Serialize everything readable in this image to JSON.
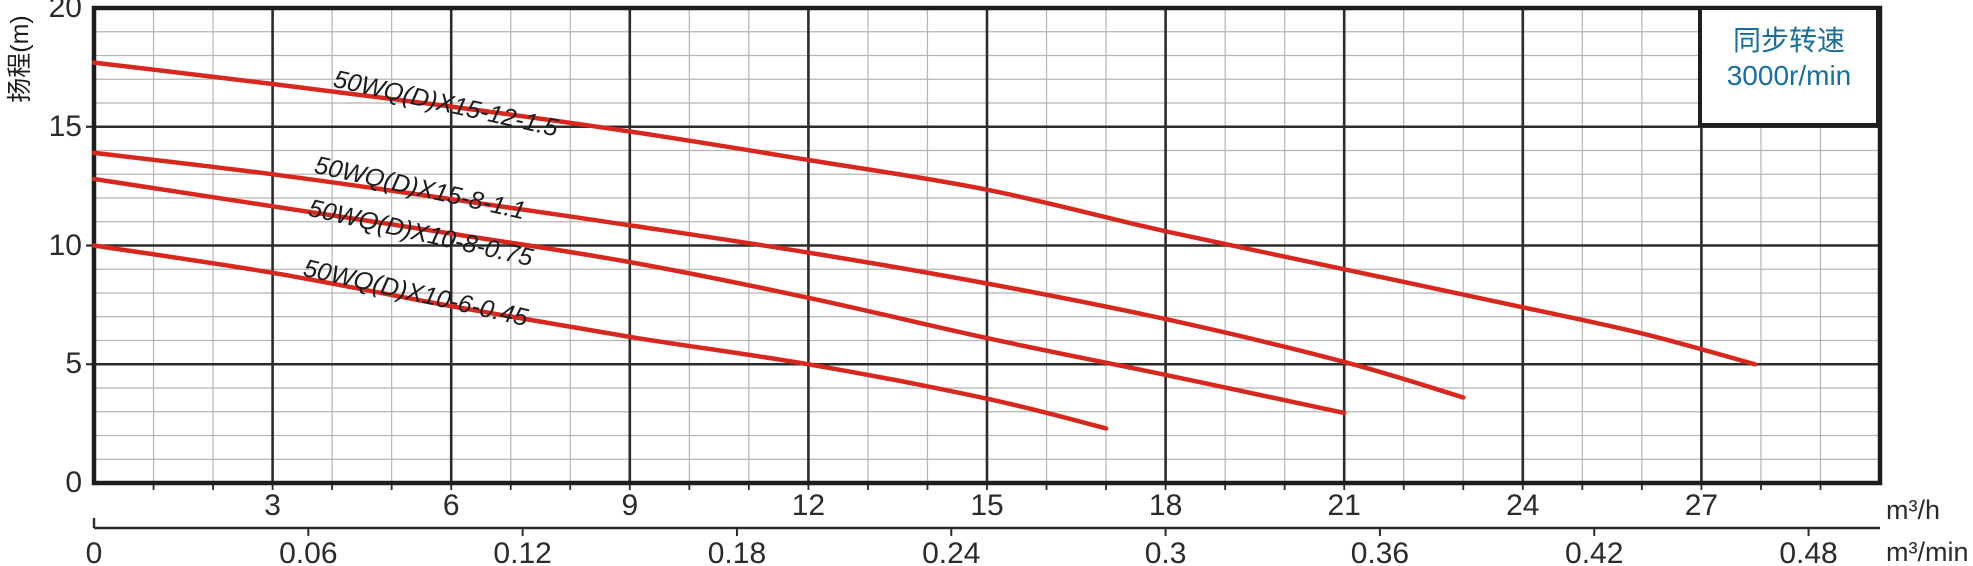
{
  "chart_data": {
    "type": "line",
    "ylabel": "扬程(m)",
    "note": {
      "line1": "同步转速",
      "line2": "3000r/min"
    },
    "y_ticks": [
      20,
      15,
      10,
      5,
      0
    ],
    "ylim": [
      0,
      20
    ],
    "x_axis_h": {
      "unit": "m³/h",
      "ticks": [
        3,
        6,
        9,
        12,
        15,
        18,
        21,
        24,
        27
      ],
      "lim": [
        0,
        30
      ]
    },
    "x_axis_min": {
      "unit": "m³/min",
      "ticks": [
        "0",
        "0.06",
        "0.12",
        "0.18",
        "0.24",
        "0.3",
        "0.36",
        "0.42",
        "0.48"
      ],
      "lim": [
        0,
        0.5
      ]
    },
    "grid": "on",
    "legend_position": "top-right",
    "series": [
      {
        "name": "50WQ(D)X15-12-1.5",
        "points": [
          [
            0,
            17.7
          ],
          [
            3,
            16.8
          ],
          [
            6,
            15.85
          ],
          [
            9,
            14.8
          ],
          [
            12,
            13.6
          ],
          [
            15,
            12.35
          ],
          [
            18,
            10.6
          ],
          [
            21,
            9.0
          ],
          [
            24,
            7.4
          ],
          [
            26,
            6.3
          ],
          [
            27.9,
            5.0
          ]
        ]
      },
      {
        "name": "50WQ(D)X15-8-1.1",
        "points": [
          [
            0,
            13.9
          ],
          [
            3,
            13.0
          ],
          [
            6,
            11.95
          ],
          [
            9,
            10.85
          ],
          [
            12,
            9.7
          ],
          [
            15,
            8.4
          ],
          [
            18,
            6.9
          ],
          [
            21,
            5.1
          ],
          [
            23,
            3.6
          ]
        ]
      },
      {
        "name": "50WQ(D)X10-8-0.75",
        "points": [
          [
            0,
            12.8
          ],
          [
            3,
            11.65
          ],
          [
            6,
            10.5
          ],
          [
            9,
            9.3
          ],
          [
            12,
            7.8
          ],
          [
            15,
            6.1
          ],
          [
            18,
            4.55
          ],
          [
            21,
            2.95
          ]
        ]
      },
      {
        "name": "50WQ(D)X10-6-0.45",
        "points": [
          [
            0,
            10.0
          ],
          [
            3,
            8.85
          ],
          [
            6,
            7.45
          ],
          [
            9,
            6.15
          ],
          [
            12,
            5.0
          ],
          [
            15,
            3.55
          ],
          [
            17,
            2.3
          ]
        ]
      }
    ],
    "colors": {
      "curve": "#d8281e",
      "legend_text": "#176f9f",
      "grid_minor": "#b5b5b5",
      "grid_major": "#2c2c2c",
      "border": "#1d1d1d",
      "background": "#ffffff"
    }
  }
}
